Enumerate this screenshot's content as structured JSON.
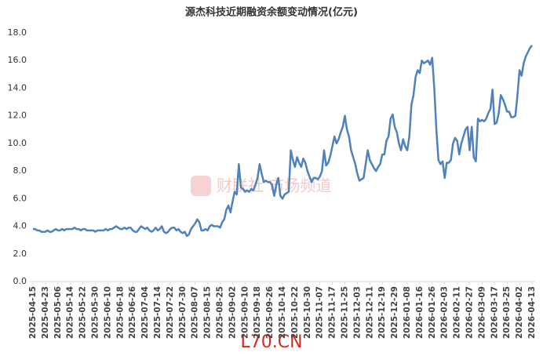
{
  "chart_data": {
    "type": "line",
    "title": "源杰科技近期融资余额变动情况(亿元)",
    "watermark": "财联社 市场频道",
    "footer": "L70.CN",
    "color": "#4f81bd",
    "grid": false,
    "ylim": [
      0,
      18
    ],
    "yticks": [
      {
        "value": 0,
        "label": "0.0"
      },
      {
        "value": 2,
        "label": "2.0"
      },
      {
        "value": 4,
        "label": "4.0"
      },
      {
        "value": 6,
        "label": "6.0"
      },
      {
        "value": 8,
        "label": "8.0"
      },
      {
        "value": 10,
        "label": "10.0"
      },
      {
        "value": 12,
        "label": "12.0"
      },
      {
        "value": 14,
        "label": "14.0"
      },
      {
        "value": 16,
        "label": "16.0"
      },
      {
        "value": 18,
        "label": "18.0"
      }
    ],
    "categories": [
      "2025-04-15",
      null,
      null,
      null,
      null,
      null,
      "2025-04-23",
      null,
      null,
      null,
      null,
      null,
      "2025-05-06",
      null,
      null,
      null,
      null,
      null,
      "2025-05-14",
      null,
      null,
      null,
      null,
      null,
      "2025-05-22",
      null,
      null,
      null,
      null,
      null,
      "2025-05-30",
      null,
      null,
      null,
      null,
      null,
      "2025-06-10",
      null,
      null,
      null,
      null,
      null,
      "2025-06-18",
      null,
      null,
      null,
      null,
      null,
      "2025-06-26",
      null,
      null,
      null,
      null,
      null,
      "2025-07-04",
      null,
      null,
      null,
      null,
      null,
      "2025-07-14",
      null,
      null,
      null,
      null,
      null,
      "2025-07-22",
      null,
      null,
      null,
      null,
      null,
      "2025-07-30",
      null,
      null,
      null,
      null,
      null,
      "2025-08-07",
      null,
      null,
      null,
      null,
      null,
      "2025-08-15",
      null,
      null,
      null,
      null,
      null,
      "2025-08-25",
      null,
      null,
      null,
      null,
      null,
      "2025-09-02",
      null,
      null,
      null,
      null,
      null,
      "2025-09-10",
      null,
      null,
      null,
      null,
      null,
      "2025-09-18",
      null,
      null,
      null,
      null,
      null,
      "2025-09-26",
      null,
      null,
      null,
      null,
      null,
      "2025-10-14",
      null,
      null,
      null,
      null,
      null,
      "2025-10-22",
      null,
      null,
      null,
      null,
      null,
      "2025-10-30",
      null,
      null,
      null,
      null,
      null,
      "2025-11-07",
      null,
      null,
      null,
      null,
      null,
      "2025-11-17",
      null,
      null,
      null,
      null,
      null,
      "2025-11-25",
      null,
      null,
      null,
      null,
      null,
      "2025-12-03",
      null,
      null,
      null,
      null,
      null,
      "2025-12-11",
      null,
      null,
      null,
      null,
      null,
      "2025-12-19",
      null,
      null,
      null,
      null,
      null,
      "2025-12-29",
      null,
      null,
      null,
      null,
      null,
      "2026-01-08",
      null,
      null,
      null,
      null,
      null,
      "2026-01-16",
      null,
      null,
      null,
      null,
      null,
      "2026-01-26",
      null,
      null,
      null,
      null,
      null,
      "2026-02-03",
      null,
      null,
      null,
      null,
      null,
      "2026-02-11",
      null,
      null,
      null,
      null,
      null,
      "2026-02-27",
      null,
      null,
      null,
      null,
      null,
      "2026-03-09",
      null,
      null,
      null,
      null,
      null,
      "2026-03-17",
      null,
      null,
      null,
      null,
      null,
      "2026-03-25",
      null,
      null,
      null,
      null,
      null,
      "2026-04-02",
      null,
      null,
      null,
      null,
      null,
      "2026-04-13"
    ],
    "values": [
      3.8,
      3.8,
      3.7,
      3.7,
      3.6,
      3.6,
      3.6,
      3.7,
      3.6,
      3.6,
      3.7,
      3.8,
      3.7,
      3.7,
      3.8,
      3.7,
      3.8,
      3.8,
      3.8,
      3.8,
      3.9,
      3.8,
      3.8,
      3.7,
      3.8,
      3.8,
      3.7,
      3.7,
      3.7,
      3.7,
      3.6,
      3.7,
      3.7,
      3.7,
      3.7,
      3.8,
      3.7,
      3.8,
      3.8,
      3.9,
      4.0,
      3.9,
      3.8,
      3.8,
      3.9,
      3.8,
      3.9,
      3.9,
      3.7,
      3.6,
      3.6,
      3.8,
      4.0,
      3.9,
      3.8,
      3.9,
      3.7,
      3.6,
      3.7,
      3.9,
      3.7,
      3.8,
      4.0,
      3.6,
      3.5,
      3.6,
      3.8,
      3.9,
      3.9,
      3.7,
      3.8,
      3.6,
      3.5,
      3.6,
      3.3,
      3.4,
      3.8,
      4.0,
      4.2,
      4.5,
      4.3,
      3.7,
      3.7,
      3.8,
      3.7,
      4.0,
      4.1,
      4.0,
      4.0,
      4.0,
      3.9,
      4.3,
      4.5,
      5.2,
      5.5,
      5.0,
      5.8,
      6.5,
      6.3,
      8.5,
      6.8,
      6.7,
      6.5,
      6.6,
      6.5,
      6.7,
      6.6,
      7.0,
      7.5,
      8.5,
      7.8,
      7.2,
      7.3,
      7.2,
      7.2,
      7.0,
      6.2,
      7.0,
      7.5,
      6.2,
      6.0,
      6.3,
      6.4,
      6.5,
      9.5,
      8.8,
      8.3,
      9.0,
      8.6,
      8.3,
      8.9,
      8.6,
      8.0,
      7.6,
      7.2,
      7.5,
      7.5,
      7.4,
      7.6,
      8.0,
      9.5,
      8.4,
      8.6,
      9.1,
      9.8,
      10.5,
      10.0,
      10.3,
      10.8,
      11.2,
      12.0,
      11.0,
      10.5,
      9.5,
      9.0,
      8.5,
      7.8,
      7.3,
      7.4,
      7.5,
      8.5,
      9.5,
      8.8,
      8.5,
      8.2,
      8.0,
      8.3,
      8.5,
      9.2,
      9.2,
      10.2,
      10.5,
      11.8,
      12.1,
      11.2,
      10.8,
      10.0,
      9.5,
      10.3,
      9.8,
      9.5,
      10.5,
      12.8,
      13.5,
      14.8,
      15.3,
      15.1,
      16.0,
      15.8,
      15.9,
      16.0,
      15.7,
      16.2,
      14.0,
      11.0,
      8.8,
      8.5,
      8.7,
      7.5,
      8.6,
      8.6,
      8.8,
      10.0,
      10.4,
      10.2,
      9.2,
      10.0,
      10.5,
      11.0,
      11.2,
      9.5,
      11.2,
      9.0,
      8.7,
      11.8,
      11.6,
      11.7,
      11.6,
      11.8,
      12.2,
      12.5,
      13.9,
      11.4,
      11.5,
      12.2,
      13.5,
      13.2,
      12.8,
      12.3,
      12.3,
      11.9,
      11.9,
      12.0,
      13.5,
      15.3,
      14.9,
      15.8,
      16.3,
      16.6,
      16.9,
      17.1
    ]
  }
}
